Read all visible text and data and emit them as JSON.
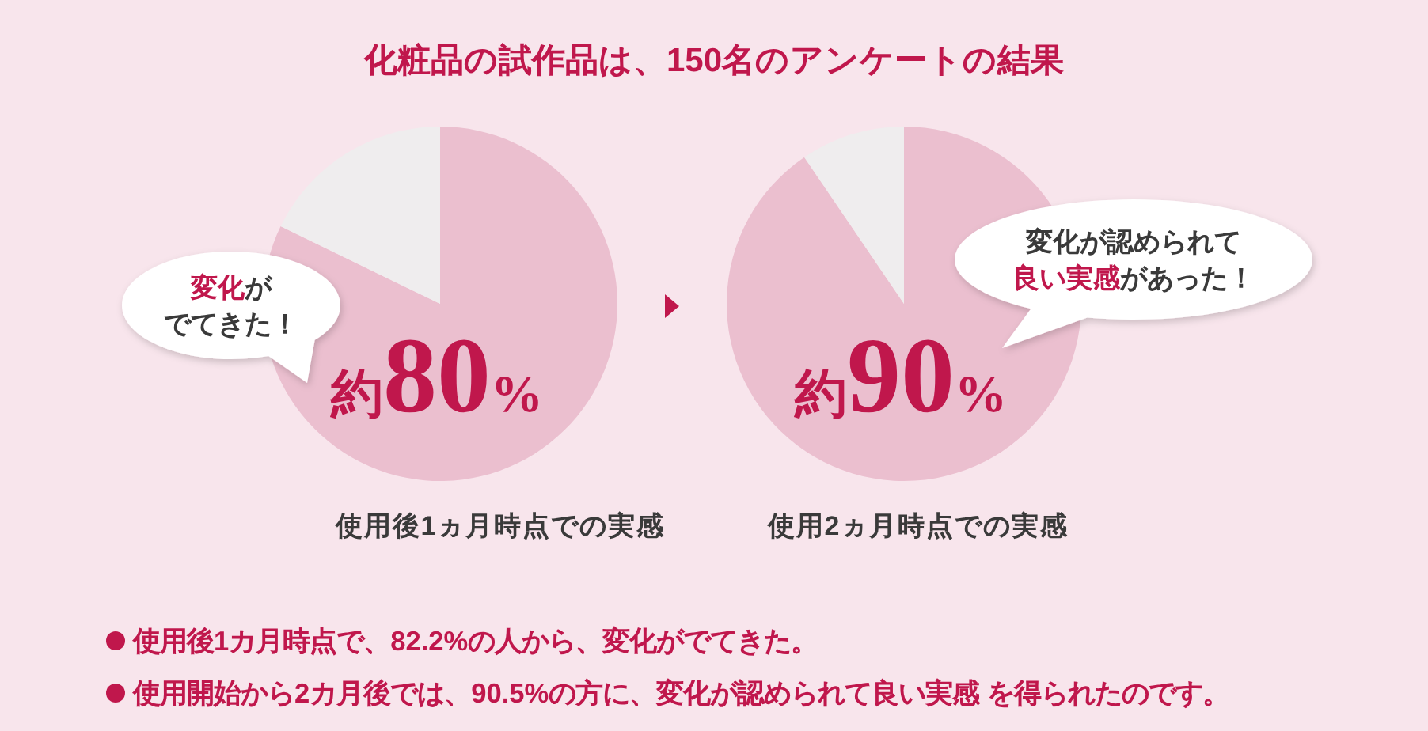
{
  "chart_data": [
    {
      "type": "pie",
      "title": "化粧品の試作品は、150名のアンケートの結果",
      "categories": [
        null,
        null
      ],
      "values": [
        82.2,
        17.8
      ],
      "colors": [
        "#ebbfcf",
        "#efedee"
      ],
      "value_labels": [
        "約80%",
        null
      ],
      "xlabel": "使用後1ヵ月時点での実感",
      "annotations": [
        "変化がでてきた！",
        "使用後1カ月時点で、82.2%の人から、変化がでてきた。"
      ]
    },
    {
      "type": "pie",
      "categories": [
        null,
        null
      ],
      "values": [
        90.5,
        9.5
      ],
      "colors": [
        "#ebbfcf",
        "#efedee"
      ],
      "value_labels": [
        "約90%",
        null
      ],
      "xlabel": "使用2ヵ月時点での実感",
      "annotations": [
        "変化が認められて良い実感があった！",
        "使用開始から2カ月後では、90.5%の方に、変化が認められて良い実感 を得られたのです。"
      ]
    }
  ]
}
